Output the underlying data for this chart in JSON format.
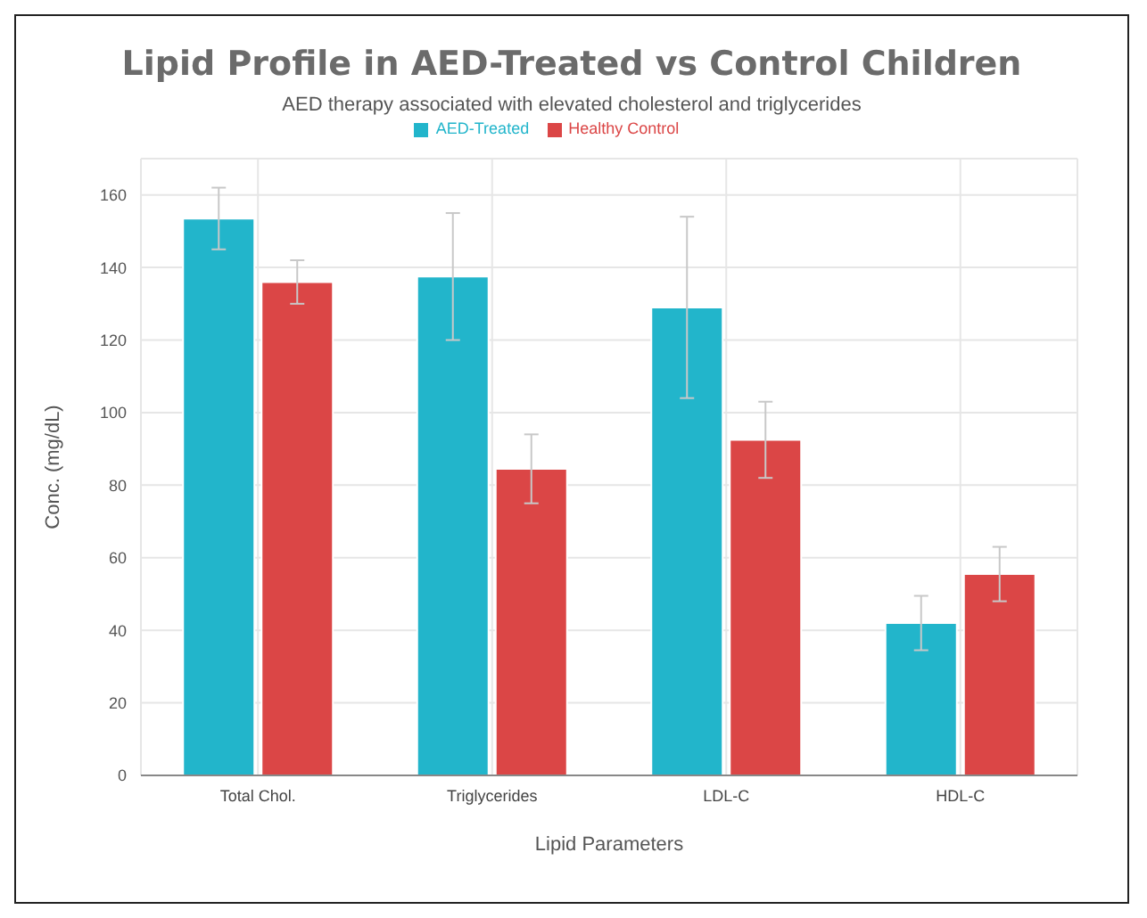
{
  "chart_data": {
    "type": "bar",
    "title": "Lipid Profile in AED-Treated vs Control Children",
    "subtitle": "AED therapy associated with elevated cholesterol and triglycerides",
    "xlabel": "Lipid Parameters",
    "ylabel": "Conc. (mg/dL)",
    "categories": [
      "Total Chol.",
      "Triglycerides",
      "LDL-C",
      "HDL-C"
    ],
    "series": [
      {
        "name": "AED-Treated",
        "color": "#22b5cb",
        "values": [
          153.5,
          137.5,
          129,
          42
        ],
        "errors": [
          8.5,
          17.5,
          25,
          7.5
        ]
      },
      {
        "name": "Healthy Control",
        "color": "#db4646",
        "values": [
          136,
          84.5,
          92.5,
          55.5
        ],
        "errors": [
          6,
          9.5,
          10.5,
          7.5
        ]
      }
    ],
    "ylim": [
      0,
      170
    ],
    "yticks": [
      0,
      20,
      40,
      60,
      80,
      100,
      120,
      140,
      160
    ],
    "grid": true,
    "legend": "top"
  }
}
